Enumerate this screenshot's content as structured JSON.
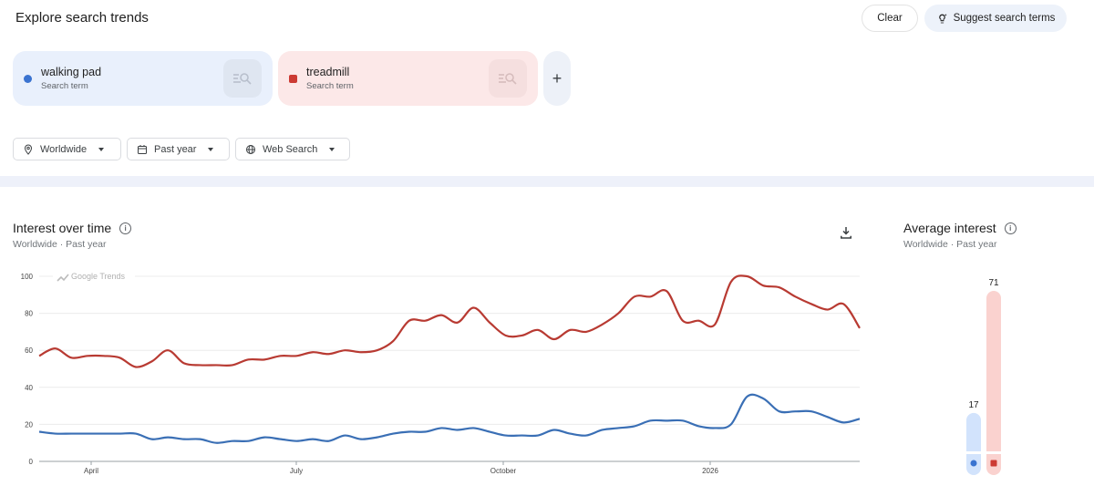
{
  "header": {
    "title": "Explore search trends",
    "clear_label": "Clear",
    "suggest_label": "Suggest search terms"
  },
  "terms": [
    {
      "name": "walking pad",
      "type": "Search term",
      "color": "#3a73d0",
      "marker": "circle"
    },
    {
      "name": "treadmill",
      "type": "Search term",
      "color": "#cc3a33",
      "marker": "square"
    }
  ],
  "add_term_label": "+",
  "filters": [
    {
      "label": "Worldwide",
      "icon": "location-pin-icon"
    },
    {
      "label": "Past year",
      "icon": "calendar-icon"
    },
    {
      "label": "Web Search",
      "icon": "globe-icon"
    }
  ],
  "interest_over_time": {
    "title": "Interest over time",
    "subtitle": "Worldwide · Past year",
    "watermark": "Google Trends"
  },
  "average_interest": {
    "title": "Average interest",
    "subtitle": "Worldwide · Past year",
    "values": [
      {
        "term": "walking pad",
        "value": "17"
      },
      {
        "term": "treadmill",
        "value": "71"
      }
    ]
  },
  "chart_data": [
    {
      "type": "line",
      "title": "Interest over time",
      "xlabel": "",
      "ylabel": "",
      "ylim": [
        0,
        100
      ],
      "yticks": [
        0,
        20,
        40,
        60,
        80,
        100
      ],
      "xtick_labels": [
        "April",
        "July",
        "October",
        "2026"
      ],
      "grid": true,
      "x": [
        0,
        1,
        2,
        3,
        4,
        5,
        6,
        7,
        8,
        9,
        10,
        11,
        12,
        13,
        14,
        15,
        16,
        17,
        18,
        19,
        20,
        21,
        22,
        23,
        24,
        25,
        26,
        27,
        28,
        29,
        30,
        31,
        32,
        33,
        34,
        35,
        36,
        37,
        38,
        39,
        40,
        41,
        42,
        43,
        44,
        45,
        46,
        47,
        48,
        49,
        50,
        51
      ],
      "series": [
        {
          "name": "walking pad",
          "color": "#3a6fb5",
          "values": [
            16,
            15,
            15,
            15,
            15,
            15,
            15,
            12,
            13,
            12,
            12,
            10,
            11,
            11,
            13,
            12,
            11,
            12,
            11,
            14,
            12,
            13,
            15,
            16,
            16,
            18,
            17,
            18,
            16,
            14,
            14,
            14,
            17,
            15,
            14,
            17,
            18,
            19,
            22,
            22,
            22,
            19,
            18,
            20,
            35,
            34,
            27,
            27,
            27,
            24,
            21,
            23
          ]
        },
        {
          "name": "treadmill",
          "color": "#b83a32",
          "values": [
            57,
            61,
            56,
            57,
            57,
            56,
            51,
            54,
            60,
            53,
            52,
            52,
            52,
            55,
            55,
            57,
            57,
            59,
            58,
            60,
            59,
            60,
            65,
            76,
            76,
            79,
            75,
            83,
            75,
            68,
            68,
            71,
            66,
            71,
            70,
            74,
            80,
            89,
            89,
            92,
            76,
            76,
            74,
            97,
            100,
            95,
            94,
            89,
            85,
            82,
            85,
            72
          ]
        }
      ]
    },
    {
      "type": "bar",
      "title": "Average interest",
      "categories": [
        "walking pad",
        "treadmill"
      ],
      "values": [
        17,
        71
      ],
      "colors": [
        "#d2e3fc",
        "#fad2cf"
      ]
    }
  ]
}
